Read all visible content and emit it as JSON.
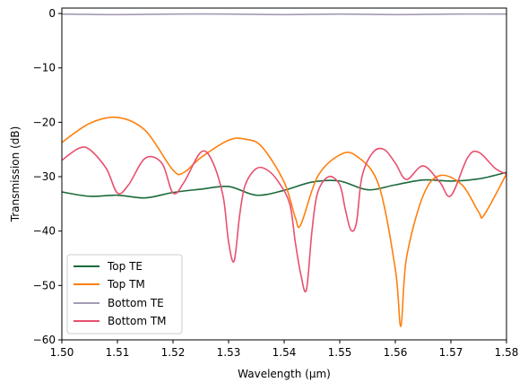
{
  "chart_data": {
    "type": "line",
    "xlabel": "Wavelength (μm)",
    "ylabel": "Transmission (dB)",
    "xlim": [
      1.5,
      1.58
    ],
    "ylim": [
      -60,
      1
    ],
    "xticks": [
      "1.50",
      "1.51",
      "1.52",
      "1.53",
      "1.54",
      "1.55",
      "1.56",
      "1.57",
      "1.58"
    ],
    "yticks": [
      "0",
      "−10",
      "−20",
      "−30",
      "−40",
      "−50",
      "−60"
    ],
    "grid": false,
    "legend_position": "lower-left",
    "series": [
      {
        "name": "Top TE",
        "color": "#1b6a3b",
        "x": [
          1.5,
          1.505,
          1.51,
          1.515,
          1.52,
          1.525,
          1.53,
          1.535,
          1.54,
          1.545,
          1.55,
          1.555,
          1.56,
          1.565,
          1.57,
          1.575,
          1.58
        ],
        "y": [
          -32.8,
          -33.6,
          -33.4,
          -33.9,
          -32.9,
          -32.3,
          -31.8,
          -33.4,
          -32.5,
          -31.0,
          -30.8,
          -32.4,
          -31.5,
          -30.6,
          -30.8,
          -30.4,
          -29.2
        ]
      },
      {
        "name": "Top TM",
        "color": "#ff7f0e",
        "x": [
          1.5,
          1.505,
          1.51,
          1.515,
          1.52,
          1.522,
          1.525,
          1.53,
          1.533,
          1.536,
          1.54,
          1.542,
          1.543,
          1.546,
          1.55,
          1.553,
          1.557,
          1.56,
          1.561,
          1.562,
          1.565,
          1.568,
          1.572,
          1.575,
          1.576,
          1.58
        ],
        "y": [
          -23.7,
          -20.2,
          -19.1,
          -21.5,
          -28.8,
          -29.2,
          -26.5,
          -23.3,
          -23.1,
          -24.5,
          -31.0,
          -37.5,
          -38.8,
          -30.0,
          -26.0,
          -26.2,
          -31.5,
          -47.0,
          -57.5,
          -45.0,
          -33.5,
          -29.8,
          -31.5,
          -36.5,
          -37.0,
          -29.5
        ]
      },
      {
        "name": "Bottom TE",
        "color": "#a49bb4",
        "x": [
          1.5,
          1.51,
          1.52,
          1.53,
          1.54,
          1.55,
          1.56,
          1.57,
          1.58
        ],
        "y": [
          -0.1,
          -0.2,
          -0.1,
          -0.1,
          -0.2,
          -0.1,
          -0.2,
          -0.1,
          -0.1
        ]
      },
      {
        "name": "Bottom TM",
        "color": "#e8506e",
        "x": [
          1.5,
          1.503,
          1.505,
          1.508,
          1.51,
          1.512,
          1.515,
          1.518,
          1.52,
          1.522,
          1.525,
          1.527,
          1.529,
          1.53,
          1.531,
          1.532,
          1.533,
          1.535,
          1.537,
          1.539,
          1.541,
          1.542,
          1.543,
          1.544,
          1.545,
          1.546,
          1.548,
          1.55,
          1.551,
          1.552,
          1.553,
          1.554,
          1.556,
          1.558,
          1.56,
          1.562,
          1.565,
          1.568,
          1.57,
          1.573,
          1.575,
          1.578,
          1.58
        ],
        "y": [
          -27.0,
          -24.8,
          -25.0,
          -28.5,
          -33.0,
          -31.5,
          -26.6,
          -27.5,
          -33.0,
          -31.0,
          -25.5,
          -27.0,
          -33.5,
          -42.0,
          -45.5,
          -37.0,
          -31.5,
          -28.5,
          -28.8,
          -31.0,
          -35.0,
          -42.0,
          -48.0,
          -50.8,
          -40.0,
          -33.0,
          -30.0,
          -31.5,
          -36.0,
          -39.8,
          -38.5,
          -30.0,
          -25.5,
          -25.0,
          -27.5,
          -30.5,
          -28.0,
          -31.0,
          -33.5,
          -26.5,
          -25.5,
          -28.5,
          -29.5
        ]
      }
    ]
  }
}
